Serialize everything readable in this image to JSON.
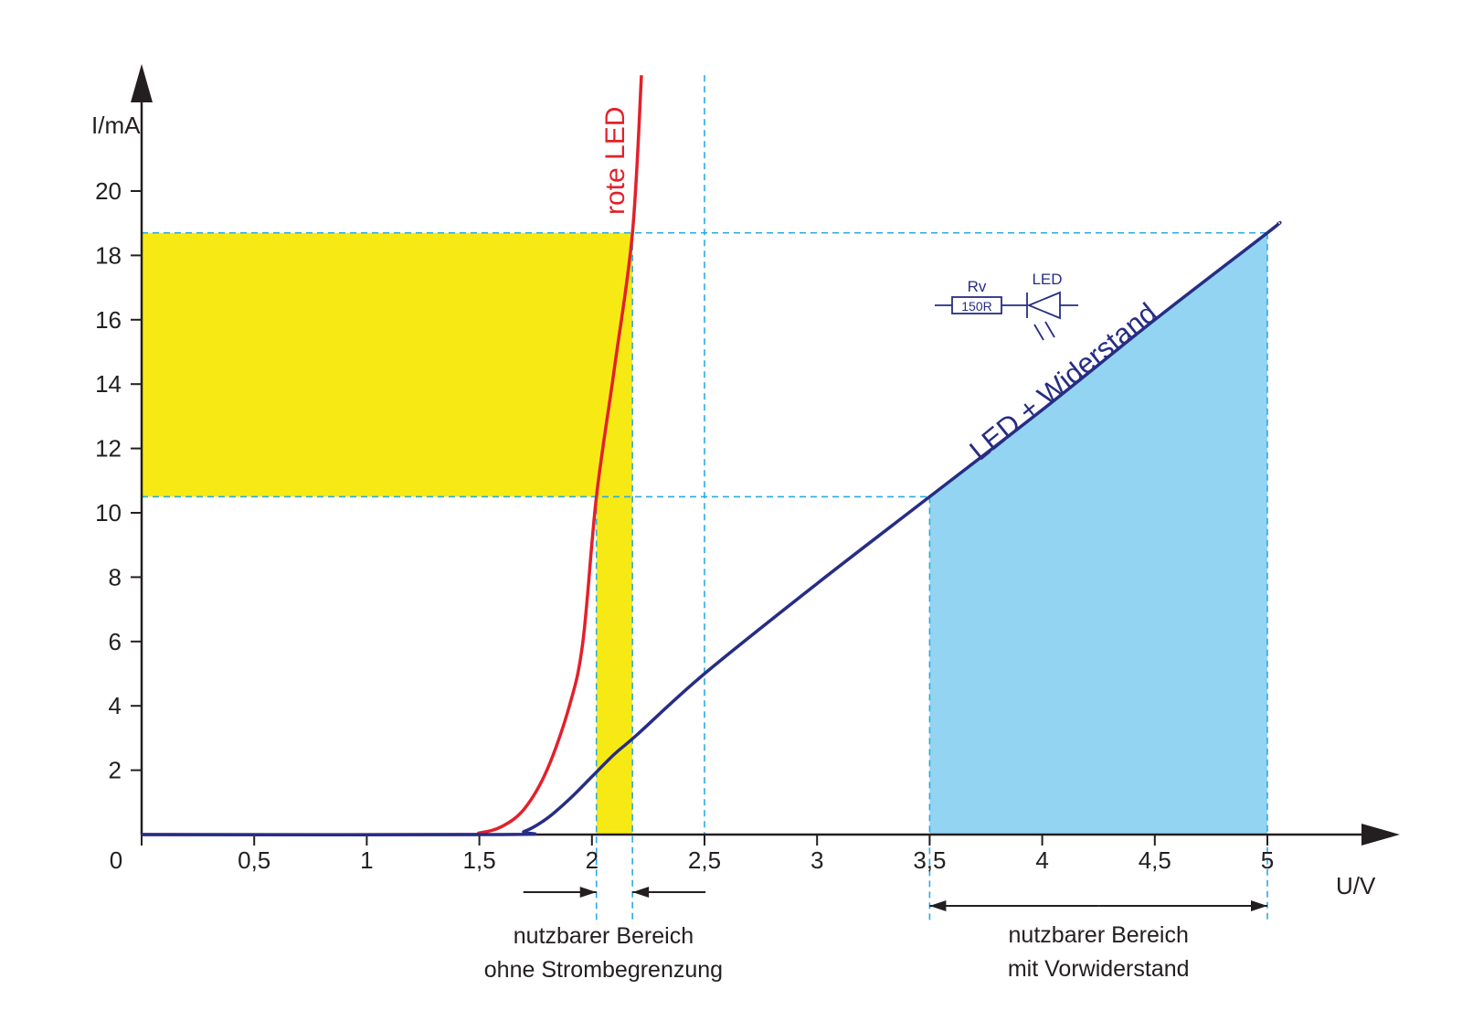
{
  "chart_data": {
    "type": "line",
    "xlabel": "U/V",
    "ylabel": "I/mA",
    "xlim": [
      0,
      5.4
    ],
    "ylim": [
      0,
      24
    ],
    "xticks": [
      0,
      {
        "value": 0.5,
        "label": "0,5"
      },
      1,
      {
        "value": 1.5,
        "label": "1,5"
      },
      2,
      {
        "value": 2.5,
        "label": "2,5"
      },
      3,
      {
        "value": 3.5,
        "label": "3,5"
      },
      4,
      {
        "value": 4.5,
        "label": "4,5"
      },
      5
    ],
    "yticks": [
      2,
      4,
      6,
      8,
      10,
      12,
      14,
      16,
      18,
      20
    ],
    "series": [
      {
        "name": "rote LED",
        "color": "#e3202a",
        "x": [
          0,
          1.4,
          1.5,
          1.6,
          1.7,
          1.8,
          1.9,
          1.96,
          2.02,
          2.1,
          2.18,
          2.22
        ],
        "values": [
          0,
          0,
          0.05,
          0.25,
          0.8,
          2,
          4,
          6,
          10.5,
          14.5,
          18.7,
          23.6
        ]
      },
      {
        "name": "LED + Widerstand",
        "color": "#272d84",
        "x": [
          0,
          1.6,
          1.7,
          1.8,
          1.9,
          2.0,
          2.1,
          2.2,
          2.5,
          3,
          3.5,
          4,
          4.5,
          5,
          5.05
        ],
        "values": [
          0,
          0,
          0.1,
          0.5,
          1.1,
          1.8,
          2.5,
          3.1,
          5.0,
          7.8,
          10.5,
          13.2,
          16.0,
          18.7,
          19.0
        ]
      }
    ],
    "highlights": [
      {
        "color": "#f7ea14",
        "x": [
          0,
          2.18
        ],
        "y": [
          10.5,
          18.7
        ]
      },
      {
        "color": "#f7ea14",
        "x": [
          2.02,
          2.18
        ],
        "y": [
          0,
          10.5
        ]
      }
    ],
    "area": {
      "color": "#93d4f2",
      "x": [
        3.5,
        5
      ]
    },
    "guide_color": "#29abe2",
    "hlines": [
      {
        "y": 18.7,
        "x": 5
      },
      {
        "y": 10.5,
        "x": 3.5
      }
    ],
    "vlines": [
      {
        "x": 2.02,
        "y": 10.5
      },
      {
        "x": 2.18,
        "y": 18.7
      },
      {
        "x": 2.5,
        "y": 23.6
      },
      {
        "x": 3.5,
        "y": 10.5
      },
      {
        "x": 5,
        "y": 18.7
      }
    ],
    "ranges": [
      {
        "lines": [
          "nutzbarer Bereich",
          "ohne Strombegrenzung"
        ],
        "x": [
          2.02,
          2.18
        ]
      },
      {
        "lines": [
          "nutzbarer Bereich",
          "mit Vorwiderstand"
        ],
        "x": [
          3.5,
          5
        ]
      }
    ],
    "circuit": {
      "resistor_name": "Rv",
      "resistor_value": "150R",
      "led_name": "LED"
    }
  }
}
